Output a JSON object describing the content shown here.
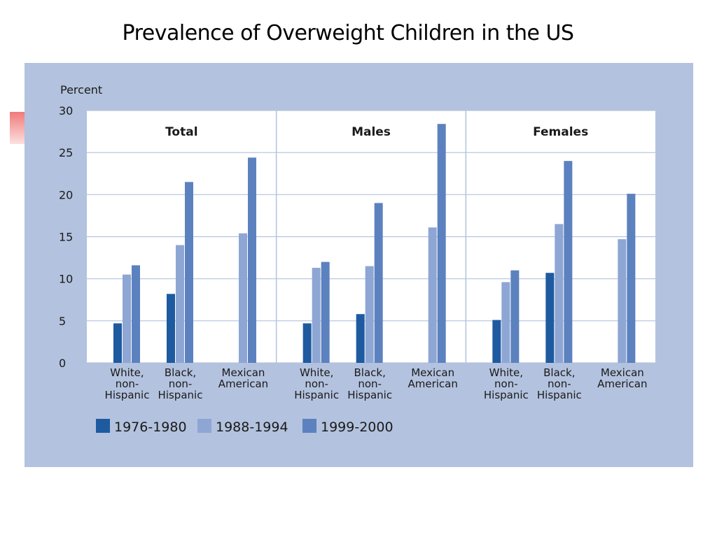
{
  "slide": {
    "title": "Prevalence of Overweight Children in the US"
  },
  "chart_data": {
    "type": "bar",
    "ylabel": "Percent",
    "ylim": [
      0,
      30
    ],
    "yticks": [
      "0",
      "5",
      "10",
      "15",
      "20",
      "25",
      "30"
    ],
    "grid": true,
    "legend_position": "bottom-left",
    "colors": {
      "1976-1980": "#1e5aa0",
      "1988-1994": "#8ea6d4",
      "1999-2000": "#5c81bf",
      "plot_background": "#ffffff",
      "panel_background": "#b3c2de"
    },
    "series": [
      {
        "name": "1976-1980"
      },
      {
        "name": "1988-1994"
      },
      {
        "name": "1999-2000"
      }
    ],
    "panels": [
      {
        "title": "Total",
        "groups": [
          {
            "label": [
              "White,",
              "non-",
              "Hispanic"
            ],
            "values": [
              4.7,
              10.5,
              11.6
            ]
          },
          {
            "label": [
              "Black,",
              "non-",
              "Hispanic"
            ],
            "values": [
              8.2,
              14.0,
              21.5
            ]
          },
          {
            "label": [
              "Mexican",
              "American"
            ],
            "values": [
              null,
              15.4,
              24.4
            ]
          }
        ]
      },
      {
        "title": "Males",
        "groups": [
          {
            "label": [
              "White,",
              "non-",
              "Hispanic"
            ],
            "values": [
              4.7,
              11.3,
              12.0
            ]
          },
          {
            "label": [
              "Black,",
              "non-",
              "Hispanic"
            ],
            "values": [
              5.8,
              11.5,
              19.0
            ]
          },
          {
            "label": [
              "Mexican",
              "American"
            ],
            "values": [
              null,
              16.1,
              28.4
            ]
          }
        ]
      },
      {
        "title": "Females",
        "groups": [
          {
            "label": [
              "White,",
              "non-",
              "Hispanic"
            ],
            "values": [
              5.1,
              9.6,
              11.0
            ]
          },
          {
            "label": [
              "Black,",
              "non-",
              "Hispanic"
            ],
            "values": [
              10.7,
              16.5,
              24.0
            ]
          },
          {
            "label": [
              "Mexican",
              "American"
            ],
            "values": [
              null,
              14.7,
              20.1
            ]
          }
        ]
      }
    ]
  }
}
